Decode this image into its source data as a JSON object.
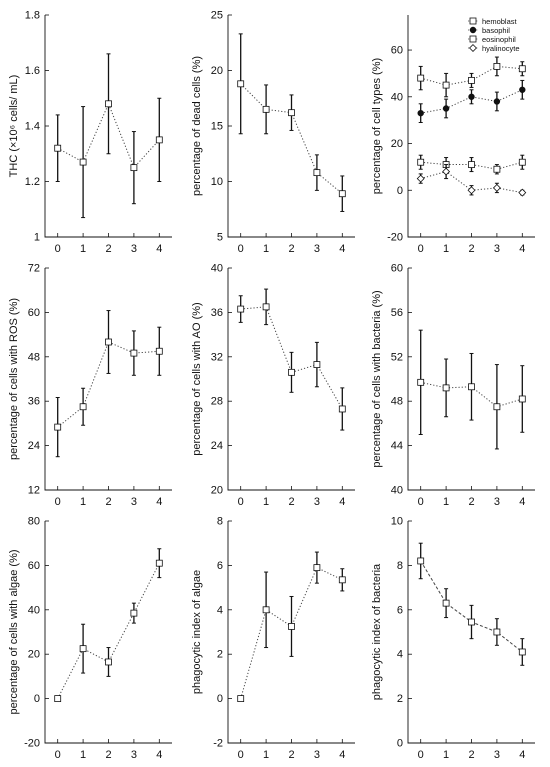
{
  "colors": {
    "ink": "#111111",
    "marker_fill": "#ffffff",
    "dotted": "#444444"
  },
  "chart_data": [
    {
      "type": "line",
      "ylabel": "THC (×10⁶ cells/ mL)",
      "xticks": [
        "0",
        "1",
        "2",
        "3",
        "4"
      ],
      "ylim": [
        1,
        1.8
      ],
      "yticks": [
        "1",
        "1.2",
        "1.4",
        "1.6",
        "1.8"
      ],
      "series": [
        {
          "values": [
            1.32,
            1.27,
            1.48,
            1.25,
            1.35
          ],
          "err": [
            0.12,
            0.2,
            0.18,
            0.13,
            0.15
          ]
        }
      ]
    },
    {
      "type": "line",
      "ylabel": "percentage of dead cells (%)",
      "xticks": [
        "0",
        "1",
        "2",
        "3",
        "4"
      ],
      "ylim": [
        5,
        25
      ],
      "yticks": [
        "5",
        "10",
        "15",
        "20",
        "25"
      ],
      "series": [
        {
          "values": [
            18.8,
            16.5,
            16.2,
            10.8,
            8.9
          ],
          "err": [
            4.5,
            2.2,
            1.6,
            1.6,
            1.6
          ]
        }
      ]
    },
    {
      "type": "line",
      "ylabel": "percentage of cell types (%)",
      "xticks": [
        "0",
        "1",
        "2",
        "3",
        "4"
      ],
      "ylim": [
        -20,
        75
      ],
      "yticks": [
        "-20",
        "0",
        "20",
        "40",
        "60"
      ],
      "legend_position": "top-right",
      "series": [
        {
          "name": "hemoblast",
          "marker": "square-open",
          "values": [
            48,
            45,
            47,
            53,
            52
          ],
          "err": [
            5,
            5,
            3,
            4,
            3
          ]
        },
        {
          "name": "basophil",
          "marker": "circle-filled",
          "values": [
            33,
            35,
            40,
            38,
            43
          ],
          "err": [
            4,
            4,
            3,
            4,
            4
          ]
        },
        {
          "name": "eosinophil",
          "marker": "square-open",
          "values": [
            12,
            11,
            11,
            9,
            12
          ],
          "err": [
            3,
            3,
            3,
            2,
            3
          ]
        },
        {
          "name": "hyalinocyte",
          "marker": "diamond-open",
          "values": [
            5,
            8,
            0,
            1,
            -1
          ],
          "err": [
            2,
            3,
            2,
            2,
            1
          ]
        }
      ]
    },
    {
      "type": "line",
      "ylabel": "percentage of cells with ROS (%)",
      "xticks": [
        "0",
        "1",
        "2",
        "3",
        "4"
      ],
      "ylim": [
        12,
        72
      ],
      "yticks": [
        "12",
        "24",
        "36",
        "48",
        "60",
        "72"
      ],
      "series": [
        {
          "values": [
            29,
            34.5,
            52,
            49,
            49.5
          ],
          "err": [
            8,
            5,
            8.5,
            6,
            6.5
          ]
        }
      ]
    },
    {
      "type": "line",
      "ylabel": "percentage of cells with AO (%)",
      "xticks": [
        "0",
        "1",
        "2",
        "3",
        "4"
      ],
      "ylim": [
        20,
        40
      ],
      "yticks": [
        "20",
        "24",
        "28",
        "32",
        "36",
        "40"
      ],
      "series": [
        {
          "values": [
            36.3,
            36.5,
            30.6,
            31.3,
            27.3
          ],
          "err": [
            1.2,
            1.6,
            1.8,
            2.0,
            1.9
          ]
        }
      ]
    },
    {
      "type": "line",
      "ylabel": "percentage of cells with bacteria (%)",
      "xticks": [
        "0",
        "1",
        "2",
        "3",
        "4"
      ],
      "ylim": [
        40,
        60
      ],
      "yticks": [
        "40",
        "44",
        "48",
        "52",
        "56",
        "60"
      ],
      "series": [
        {
          "values": [
            49.7,
            49.2,
            49.3,
            47.5,
            48.2
          ],
          "err": [
            4.7,
            2.6,
            3.0,
            3.8,
            3.0
          ]
        }
      ]
    },
    {
      "type": "line",
      "ylabel": "percentage of cells with algae (%)",
      "xticks": [
        "0",
        "1",
        "2",
        "3",
        "4"
      ],
      "ylim": [
        -20,
        80
      ],
      "yticks": [
        "-20",
        "0",
        "20",
        "40",
        "60",
        "80"
      ],
      "series": [
        {
          "values": [
            0,
            22.5,
            16.5,
            38.5,
            61
          ],
          "err": [
            0,
            11,
            6.5,
            4.5,
            6.5
          ]
        }
      ]
    },
    {
      "type": "line",
      "ylabel": "phagocytic index of algae",
      "xticks": [
        "0",
        "1",
        "2",
        "3",
        "4"
      ],
      "ylim": [
        -2,
        8
      ],
      "yticks": [
        "-2",
        "0",
        "2",
        "4",
        "6",
        "8"
      ],
      "series": [
        {
          "values": [
            0,
            4.0,
            3.25,
            5.9,
            5.35
          ],
          "err": [
            0,
            1.7,
            1.35,
            0.7,
            0.5
          ]
        }
      ]
    },
    {
      "type": "line",
      "ylabel": "phagocytic index of bacteria",
      "xticks": [
        "0",
        "1",
        "2",
        "3",
        "4"
      ],
      "ylim": [
        0,
        10
      ],
      "yticks": [
        "0",
        "2",
        "4",
        "6",
        "8",
        "10"
      ],
      "line_style": "dashed",
      "series": [
        {
          "values": [
            8.2,
            6.3,
            5.45,
            5.0,
            4.1
          ],
          "err": [
            0.8,
            0.65,
            0.75,
            0.6,
            0.6
          ]
        }
      ]
    }
  ]
}
